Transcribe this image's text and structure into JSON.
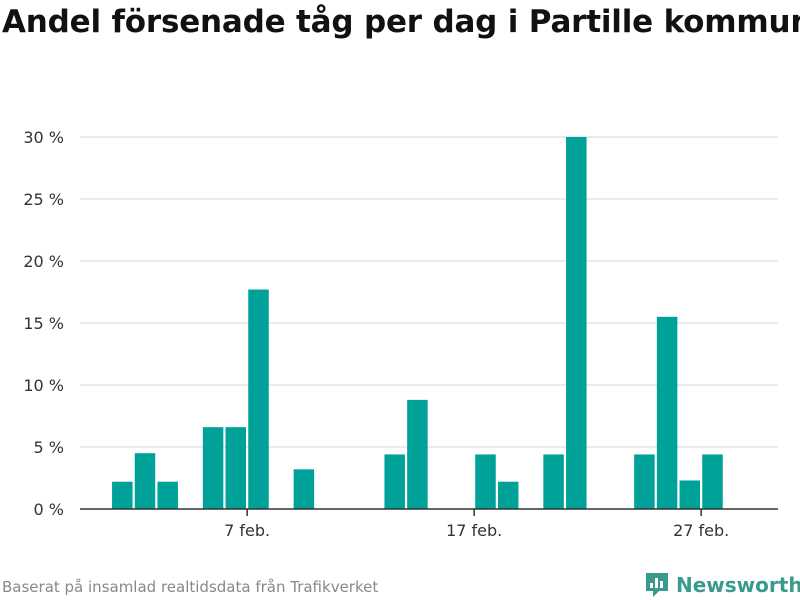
{
  "title": "Andel försenade tåg per dag i Partille kommun",
  "footer": {
    "source": "Baserat på insamlad realtidsdata från Trafikverket",
    "brand": "Newsworthy",
    "brand_icon": "bar-chart-speech-bubble-icon"
  },
  "colors": {
    "bar": "#00a199",
    "grid": "#dddddd",
    "axis": "#333333",
    "brand": "#3a9a8e"
  },
  "chart_data": {
    "type": "bar",
    "title": "Andel försenade tåg per dag i Partille kommun",
    "xlabel": "",
    "ylabel": "",
    "ylim": [
      0,
      30
    ],
    "yticks": [
      0,
      5,
      10,
      15,
      20,
      25,
      30
    ],
    "ytick_labels": [
      "0 %",
      "5 %",
      "10 %",
      "15 %",
      "20 %",
      "25 %",
      "30 %"
    ],
    "grid": true,
    "x_tick_labels": [
      {
        "day": 7,
        "label": "7 feb."
      },
      {
        "day": 17,
        "label": "17 feb."
      },
      {
        "day": 27,
        "label": "27 feb."
      }
    ],
    "x_days": [
      1,
      2,
      3,
      4,
      5,
      6,
      7,
      8,
      9,
      10,
      11,
      12,
      13,
      14,
      15,
      16,
      17,
      18,
      19,
      20,
      21,
      22,
      23,
      24,
      25,
      26,
      27,
      28
    ],
    "values": [
      0,
      2.2,
      4.5,
      2.2,
      0,
      6.6,
      6.6,
      17.7,
      0,
      3.2,
      0,
      0,
      0,
      4.4,
      8.8,
      0,
      0,
      4.4,
      2.2,
      0,
      4.4,
      30,
      0,
      0,
      4.4,
      15.5,
      2.3,
      4.4
    ]
  }
}
